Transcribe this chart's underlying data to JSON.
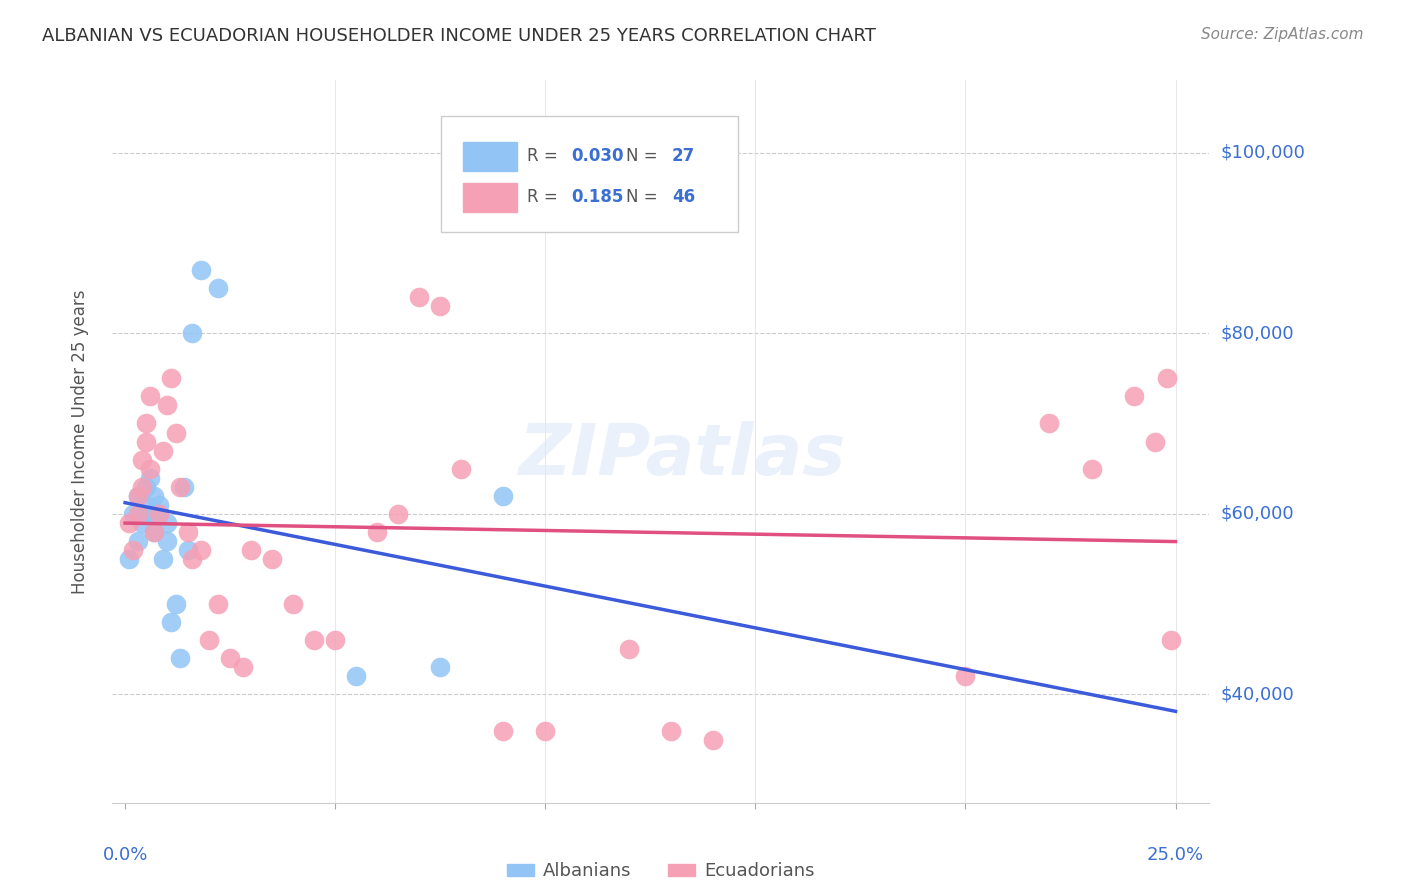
{
  "title": "ALBANIAN VS ECUADORIAN HOUSEHOLDER INCOME UNDER 25 YEARS CORRELATION CHART",
  "source": "Source: ZipAtlas.com",
  "ylabel": "Householder Income Under 25 years",
  "ytick_values": [
    40000,
    60000,
    80000,
    100000
  ],
  "ytick_labels": [
    "$40,000",
    "$60,000",
    "$80,000",
    "$100,000"
  ],
  "ylim": [
    28000,
    108000
  ],
  "xlim": [
    -0.003,
    0.258
  ],
  "legend_r1": "0.030",
  "legend_n1": "27",
  "legend_r2": "0.185",
  "legend_n2": "46",
  "watermark": "ZIPatlas",
  "albanian_color": "#92c5f5",
  "ecuadorian_color": "#f5a0b5",
  "albanian_line_color": "#3b5bdb",
  "ecuadorian_line_color": "#e05080",
  "albanian_x": [
    0.001,
    0.002,
    0.003,
    0.003,
    0.004,
    0.005,
    0.005,
    0.006,
    0.006,
    0.007,
    0.007,
    0.008,
    0.008,
    0.009,
    0.01,
    0.01,
    0.011,
    0.012,
    0.013,
    0.014,
    0.015,
    0.016,
    0.018,
    0.022,
    0.055,
    0.075,
    0.09
  ],
  "albanian_y": [
    55000,
    60000,
    62000,
    57000,
    59000,
    63000,
    61000,
    64000,
    60000,
    58000,
    62000,
    61000,
    60000,
    55000,
    57000,
    59000,
    48000,
    50000,
    44000,
    63000,
    56000,
    80000,
    87000,
    85000,
    42000,
    43000,
    62000
  ],
  "ecuadorian_x": [
    0.001,
    0.002,
    0.003,
    0.003,
    0.004,
    0.004,
    0.005,
    0.005,
    0.006,
    0.006,
    0.007,
    0.008,
    0.009,
    0.01,
    0.011,
    0.012,
    0.013,
    0.015,
    0.016,
    0.018,
    0.02,
    0.022,
    0.025,
    0.028,
    0.03,
    0.035,
    0.04,
    0.045,
    0.05,
    0.06,
    0.065,
    0.07,
    0.075,
    0.08,
    0.09,
    0.1,
    0.12,
    0.13,
    0.14,
    0.2,
    0.22,
    0.23,
    0.24,
    0.245,
    0.248,
    0.249
  ],
  "ecuadorian_y": [
    59000,
    56000,
    62000,
    60000,
    66000,
    63000,
    70000,
    68000,
    73000,
    65000,
    58000,
    60000,
    67000,
    72000,
    75000,
    69000,
    63000,
    58000,
    55000,
    56000,
    46000,
    50000,
    44000,
    43000,
    56000,
    55000,
    50000,
    46000,
    46000,
    58000,
    60000,
    84000,
    83000,
    65000,
    36000,
    36000,
    45000,
    36000,
    35000,
    42000,
    70000,
    65000,
    73000,
    68000,
    75000,
    46000
  ]
}
